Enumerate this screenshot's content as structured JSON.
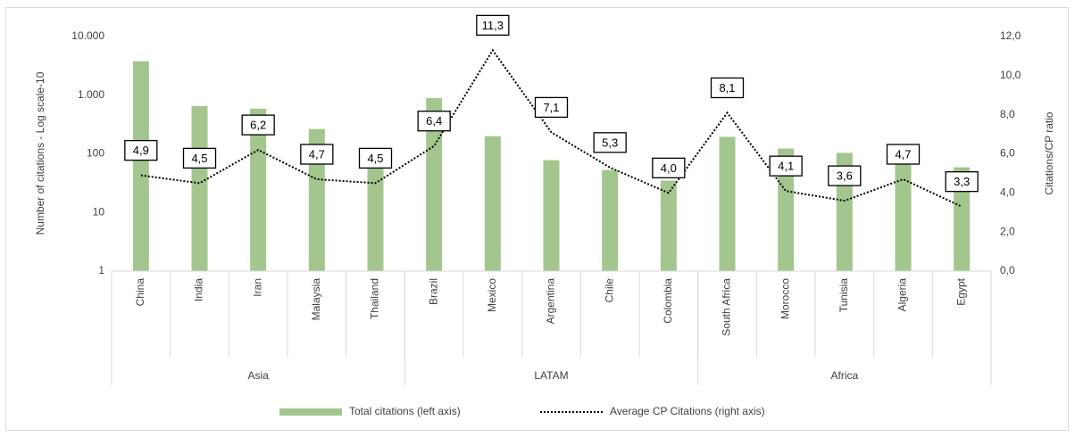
{
  "chart_data": {
    "type": "bar",
    "groups": [
      {
        "name": "Asia",
        "categories": [
          "China",
          "India",
          "Iran",
          "Malaysia",
          "Thailand"
        ]
      },
      {
        "name": "LATAM",
        "categories": [
          "Brazil",
          "Mexico",
          "Argentina",
          "Chile",
          "Colombia"
        ]
      },
      {
        "name": "Africa",
        "categories": [
          "South Africa",
          "Morocco",
          "Tunisia",
          "Algeria",
          "Egypt"
        ]
      }
    ],
    "series": [
      {
        "name": "Total citations (left axis)",
        "type": "bar",
        "color": "#a3c68e",
        "values": [
          3800,
          650,
          590,
          265,
          62,
          890,
          200,
          78,
          53,
          35,
          195,
          123,
          104,
          75,
          59
        ]
      },
      {
        "name": "Average CP Citations (right axis)",
        "type": "line",
        "axis": "y2",
        "color": "#000000",
        "values": [
          4.9,
          4.5,
          6.2,
          4.7,
          4.5,
          6.4,
          11.3,
          7.1,
          5.3,
          4.0,
          8.1,
          4.1,
          3.6,
          4.7,
          3.3
        ],
        "value_labels": [
          "4,9",
          "4,5",
          "6,2",
          "4,7",
          "4,5",
          "6,4",
          "11,3",
          "7,1",
          "5,3",
          "4,0",
          "8,1",
          "4,1",
          "3,6",
          "4,7",
          "3,3"
        ]
      }
    ],
    "ylabel": "Number of citations - Log scale-10",
    "y2label": "Citations/CP ratio",
    "yscale": "log",
    "ylim": [
      1,
      10000
    ],
    "yticks": [
      1,
      10,
      100,
      {
        "value": 1000,
        "label": "1.000"
      },
      {
        "value": 10000,
        "label": "10.000"
      }
    ],
    "y2lim": [
      0,
      12
    ],
    "y2ticks": [
      {
        "value": 0,
        "label": "0,0"
      },
      {
        "value": 2,
        "label": "2,0"
      },
      {
        "value": 4,
        "label": "4,0"
      },
      {
        "value": 6,
        "label": "6,0"
      },
      {
        "value": 8,
        "label": "8,0"
      },
      {
        "value": 10,
        "label": "10,0"
      },
      {
        "value": 12,
        "label": "12,0"
      }
    ],
    "grid": false,
    "legend": "bottom"
  }
}
